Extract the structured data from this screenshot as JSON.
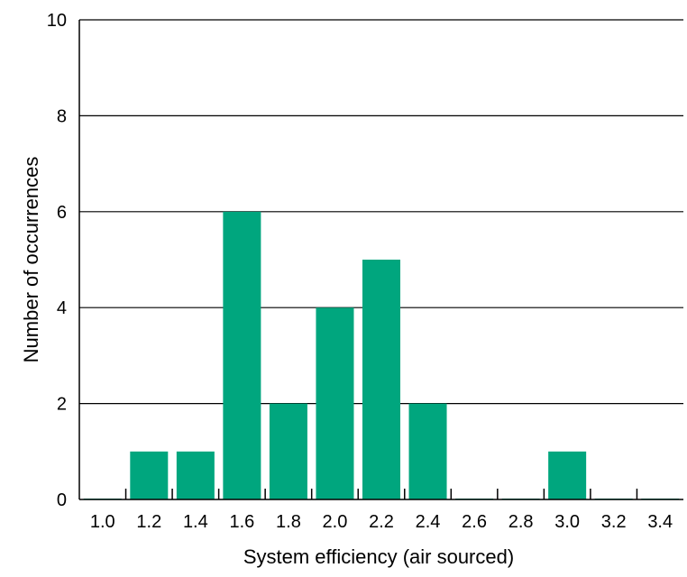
{
  "chart_data": {
    "type": "bar",
    "title": "",
    "xlabel": "System efficiency (air sourced)",
    "ylabel": "Number of occurrences",
    "categories": [
      "1.0",
      "1.2",
      "1.4",
      "1.6",
      "1.8",
      "2.0",
      "2.2",
      "2.4",
      "2.6",
      "2.8",
      "3.0",
      "3.2",
      "3.4"
    ],
    "values": [
      0,
      1,
      1,
      6,
      2,
      4,
      5,
      2,
      0,
      0,
      1,
      0,
      0
    ],
    "ylim": [
      0,
      10
    ],
    "yticks": [
      "0",
      "2",
      "4",
      "6",
      "8",
      "10"
    ],
    "grid": "horizontal",
    "legend": "none",
    "colors": {
      "bar": "#00a67e",
      "grid": "#000000"
    }
  }
}
